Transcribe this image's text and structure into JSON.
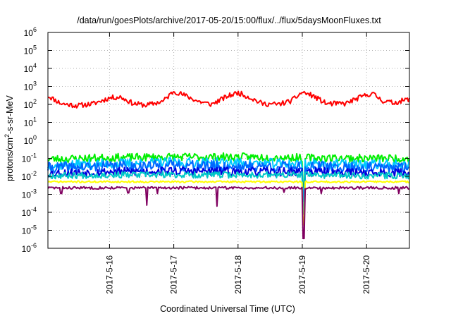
{
  "chart_data": {
    "type": "line",
    "title": "/data/run/goesPlots/archive/2017-05-20/15:00/flux/../flux/5daysMoonFluxes.txt",
    "xlabel": "Coordinated Universal Time (UTC)",
    "ylabel": {
      "pre": "protons/cm",
      "sup": "2",
      "post": "-s-sr-MeV"
    },
    "y_scale": "log",
    "ylim": [
      1e-06,
      1000000.0
    ],
    "y_ticks": [
      {
        "value": 1e-06,
        "base": "10",
        "exp": "-6"
      },
      {
        "value": 1e-05,
        "base": "10",
        "exp": "-5"
      },
      {
        "value": 0.0001,
        "base": "10",
        "exp": "-4"
      },
      {
        "value": 0.001,
        "base": "10",
        "exp": "-3"
      },
      {
        "value": 0.01,
        "base": "10",
        "exp": "-2"
      },
      {
        "value": 0.1,
        "base": "10",
        "exp": "-1"
      },
      {
        "value": 1.0,
        "base": "10",
        "exp": "0"
      },
      {
        "value": 10.0,
        "base": "10",
        "exp": "1"
      },
      {
        "value": 100.0,
        "base": "10",
        "exp": "2"
      },
      {
        "value": 1000.0,
        "base": "10",
        "exp": "3"
      },
      {
        "value": 10000.0,
        "base": "10",
        "exp": "4"
      },
      {
        "value": 100000.0,
        "base": "10",
        "exp": "5"
      },
      {
        "value": 1000000.0,
        "base": "10",
        "exp": "6"
      }
    ],
    "xlim": [
      "2017-05-15 01:00",
      "2017-05-20 16:00"
    ],
    "x_ticks": [
      {
        "value": "2017-05-16 00:00",
        "label": "2017-5-16"
      },
      {
        "value": "2017-05-17 00:00",
        "label": "2017-5-17"
      },
      {
        "value": "2017-05-18 00:00",
        "label": "2017-5-18"
      },
      {
        "value": "2017-05-19 00:00",
        "label": "2017-5-19"
      },
      {
        "value": "2017-05-20 00:00",
        "label": "2017-5-20"
      }
    ],
    "grid": true,
    "series": [
      {
        "color": "#ff0000",
        "base": 120,
        "wiggle": 0.14,
        "seed": 11,
        "points": [
          [
            "2017-05-15 01:00",
            300
          ],
          [
            "2017-05-15 06:00",
            110
          ],
          [
            "2017-05-15 12:00",
            85
          ],
          [
            "2017-05-15 18:00",
            110
          ],
          [
            "2017-05-16 00:00",
            230
          ],
          [
            "2017-05-16 04:00",
            260
          ],
          [
            "2017-05-16 09:00",
            110
          ],
          [
            "2017-05-16 14:00",
            90
          ],
          [
            "2017-05-16 20:00",
            150
          ],
          [
            "2017-05-17 00:00",
            550
          ],
          [
            "2017-05-17 04:00",
            320
          ],
          [
            "2017-05-17 09:00",
            150
          ],
          [
            "2017-05-17 14:00",
            100
          ],
          [
            "2017-05-17 20:00",
            280
          ],
          [
            "2017-05-18 00:00",
            450
          ],
          [
            "2017-05-18 04:00",
            260
          ],
          [
            "2017-05-18 09:00",
            110
          ],
          [
            "2017-05-18 15:00",
            100
          ],
          [
            "2017-05-18 20:00",
            160
          ],
          [
            "2017-05-19 00:00",
            480
          ],
          [
            "2017-05-19 04:00",
            300
          ],
          [
            "2017-05-19 09:00",
            110
          ],
          [
            "2017-05-19 16:00",
            110
          ],
          [
            "2017-05-19 22:00",
            260
          ],
          [
            "2017-05-20 02:00",
            420
          ],
          [
            "2017-05-20 06:00",
            160
          ],
          [
            "2017-05-20 10:00",
            120
          ],
          [
            "2017-05-20 16:00",
            200
          ]
        ],
        "dips": []
      },
      {
        "color": "#00ee00",
        "base": 0.11,
        "wiggle": 0.22,
        "seed": 23,
        "points": [
          [
            "2017-05-15 01:00",
            0.09
          ],
          [
            "2017-05-16 00:00",
            0.11
          ],
          [
            "2017-05-17 00:00",
            0.12
          ],
          [
            "2017-05-18 00:00",
            0.12
          ],
          [
            "2017-05-19 00:00",
            0.11
          ],
          [
            "2017-05-20 00:00",
            0.1
          ],
          [
            "2017-05-20 16:00",
            0.1
          ]
        ],
        "dips": [
          [
            "2017-05-19 00:30",
            0.0025
          ]
        ]
      },
      {
        "color": "#00c8ff",
        "base": 0.05,
        "wiggle": 0.28,
        "seed": 37,
        "points": [
          [
            "2017-05-15 01:00",
            0.04
          ],
          [
            "2017-05-16 00:00",
            0.05
          ],
          [
            "2017-05-17 00:00",
            0.06
          ],
          [
            "2017-05-18 00:00",
            0.055
          ],
          [
            "2017-05-19 00:00",
            0.05
          ],
          [
            "2017-05-20 00:00",
            0.045
          ],
          [
            "2017-05-20 16:00",
            0.045
          ]
        ],
        "dips": [
          [
            "2017-05-19 00:30",
            0.0008
          ]
        ]
      },
      {
        "color": "#0066ff",
        "base": 0.035,
        "wiggle": 0.3,
        "seed": 41,
        "points": [
          [
            "2017-05-15 01:00",
            0.03
          ],
          [
            "2017-05-16 00:00",
            0.035
          ],
          [
            "2017-05-17 00:00",
            0.04
          ],
          [
            "2017-05-18 00:00",
            0.035
          ],
          [
            "2017-05-19 00:00",
            0.035
          ],
          [
            "2017-05-20 00:00",
            0.03
          ],
          [
            "2017-05-20 16:00",
            0.03
          ]
        ],
        "dips": [
          [
            "2017-05-19 00:30",
            0.0004
          ]
        ]
      },
      {
        "color": "#0000dd",
        "base": 0.018,
        "wiggle": 0.24,
        "seed": 53,
        "points": [
          [
            "2017-05-15 01:00",
            0.015
          ],
          [
            "2017-05-16 00:00",
            0.018
          ],
          [
            "2017-05-17 00:00",
            0.02
          ],
          [
            "2017-05-18 00:00",
            0.018
          ],
          [
            "2017-05-19 00:00",
            0.018
          ],
          [
            "2017-05-20 00:00",
            0.016
          ],
          [
            "2017-05-20 16:00",
            0.016
          ]
        ],
        "dips": [
          [
            "2017-05-19 00:30",
            0.0001
          ]
        ]
      },
      {
        "color": "#00c8c8",
        "base": 0.012,
        "wiggle": 0.18,
        "seed": 67,
        "points": [
          [
            "2017-05-15 01:00",
            0.011
          ],
          [
            "2017-05-16 00:00",
            0.012
          ],
          [
            "2017-05-17 00:00",
            0.012
          ],
          [
            "2017-05-18 00:00",
            0.012
          ],
          [
            "2017-05-19 00:00",
            0.012
          ],
          [
            "2017-05-20 00:00",
            0.011
          ],
          [
            "2017-05-20 16:00",
            0.011
          ]
        ],
        "dips": [
          [
            "2017-05-19 00:30",
            8e-05
          ]
        ]
      },
      {
        "color": "#ffff00",
        "base": 0.005,
        "wiggle": 0.05,
        "seed": 71,
        "points": [
          [
            "2017-05-15 01:00",
            0.005
          ],
          [
            "2017-05-20 16:00",
            0.005
          ]
        ],
        "dips": [
          [
            "2017-05-19 00:30",
            2e-05
          ]
        ]
      },
      {
        "color": "#800060",
        "base": 0.0023,
        "wiggle": 0.07,
        "seed": 83,
        "points": [
          [
            "2017-05-15 01:00",
            0.0023
          ],
          [
            "2017-05-20 16:00",
            0.0023
          ]
        ],
        "dips": [
          [
            "2017-05-15 06:00",
            0.0011
          ],
          [
            "2017-05-16 07:00",
            0.0012
          ],
          [
            "2017-05-16 14:00",
            0.00025
          ],
          [
            "2017-05-16 18:00",
            0.0011
          ],
          [
            "2017-05-17 16:00",
            0.00022
          ],
          [
            "2017-05-18 17:00",
            0.0013
          ],
          [
            "2017-05-19 00:30",
            3.5e-06
          ],
          [
            "2017-05-19 07:00",
            0.0011
          ],
          [
            "2017-05-20 12:00",
            0.0011
          ]
        ]
      }
    ]
  }
}
